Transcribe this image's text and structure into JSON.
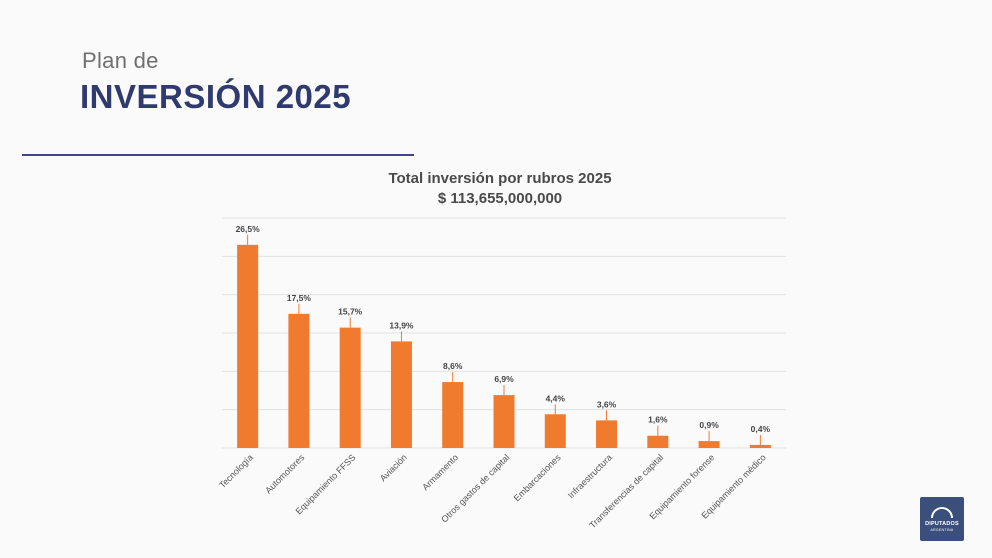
{
  "slide": {
    "title_small": "Plan de",
    "title_big": "INVERSIÓN 2025"
  },
  "logo": {
    "line1": "DIPUTADOS",
    "line2": "ARGENTINA"
  },
  "colors": {
    "bar": "#f07a2e",
    "title": "#2f3a6e",
    "grid": "#e2e2e2"
  },
  "chart_data": {
    "type": "bar",
    "title": "Total inversión por rubros 2025",
    "subtitle": "$ 113,655,000,000",
    "categories": [
      "Tecnología",
      "Automotores",
      "Equipamiento FFSS",
      "Aviación",
      "Armamento",
      "Otros gastos de capital",
      "Embarcaciones",
      "Infraestructura",
      "Transferencias de capital",
      "Equipamiento forense",
      "Equipamiento médico"
    ],
    "values": [
      26.5,
      17.5,
      15.7,
      13.9,
      8.6,
      6.9,
      4.4,
      3.6,
      1.6,
      0.9,
      0.4
    ],
    "labels": [
      "26,5%",
      "17,5%",
      "15,7%",
      "13,9%",
      "8,6%",
      "6,9%",
      "4,4%",
      "3,6%",
      "1,6%",
      "0,9%",
      "0,4%"
    ],
    "ylim": [
      0,
      30
    ],
    "grid": true,
    "legend": false
  }
}
